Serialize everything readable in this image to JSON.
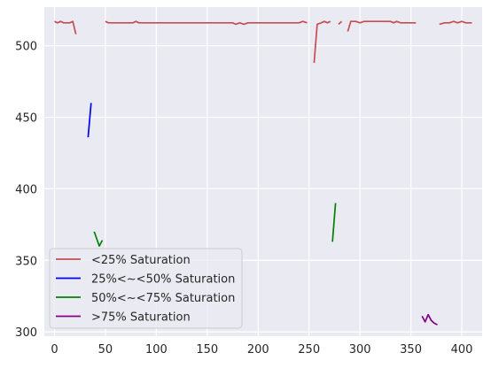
{
  "chart_data": {
    "type": "line",
    "xlim": [
      -10,
      420
    ],
    "ylim": [
      297,
      527
    ],
    "xticks": [
      0,
      50,
      100,
      150,
      200,
      250,
      300,
      350,
      400
    ],
    "yticks": [
      300,
      350,
      400,
      450,
      500
    ],
    "xtick_labels": [
      "0",
      "50",
      "100",
      "150",
      "200",
      "250",
      "300",
      "350",
      "400"
    ],
    "ytick_labels": [
      "300",
      "350",
      "400",
      "450",
      "500"
    ],
    "grid": true,
    "legend_position": "lower-left",
    "series": [
      {
        "name": "<25% Saturation",
        "color": "#c44e52",
        "segments": [
          [
            [
              0,
              517
            ],
            [
              3,
              516
            ],
            [
              6,
              517
            ],
            [
              9,
              516
            ],
            [
              12,
              516
            ],
            [
              15,
              516
            ],
            [
              18,
              517
            ],
            [
              21,
              508
            ]
          ],
          [
            [
              50,
              517
            ],
            [
              53,
              516
            ],
            [
              60,
              516
            ],
            [
              70,
              516
            ],
            [
              77,
              516
            ],
            [
              80,
              517
            ],
            [
              83,
              516
            ],
            [
              100,
              516
            ],
            [
              130,
              516
            ],
            [
              160,
              516
            ],
            [
              175,
              516
            ],
            [
              178,
              515
            ],
            [
              182,
              516
            ],
            [
              186,
              515
            ],
            [
              190,
              516
            ],
            [
              220,
              516
            ],
            [
              240,
              516
            ],
            [
              244,
              517
            ],
            [
              248,
              516
            ]
          ],
          [
            [
              255,
              488
            ],
            [
              258,
              515
            ],
            [
              262,
              516
            ],
            [
              265,
              517
            ],
            [
              268,
              516
            ],
            [
              271,
              517
            ]
          ],
          [
            [
              279,
              515
            ],
            [
              282,
              517
            ]
          ],
          [
            [
              288,
              510
            ],
            [
              291,
              517
            ],
            [
              296,
              517
            ],
            [
              300,
              516
            ],
            [
              304,
              517
            ],
            [
              310,
              517
            ],
            [
              320,
              517
            ],
            [
              330,
              517
            ],
            [
              333,
              516
            ],
            [
              336,
              517
            ],
            [
              340,
              516
            ],
            [
              350,
              516
            ],
            [
              355,
              516
            ]
          ],
          [
            [
              378,
              515
            ],
            [
              383,
              516
            ],
            [
              388,
              516
            ],
            [
              392,
              517
            ],
            [
              396,
              516
            ],
            [
              400,
              517
            ],
            [
              404,
              516
            ],
            [
              410,
              516
            ]
          ]
        ]
      },
      {
        "name": "25%<~<50% Saturation",
        "color": "#0000ff",
        "segments": [
          [
            [
              33,
              436
            ],
            [
              36,
              460
            ]
          ]
        ]
      },
      {
        "name": "50%<~<75% Saturation",
        "color": "#008000",
        "segments": [
          [
            [
              39,
              370
            ],
            [
              44,
              360
            ],
            [
              47,
              364
            ]
          ],
          [
            [
              273,
              363
            ],
            [
              276,
              390
            ]
          ]
        ]
      },
      {
        "name": ">75% Saturation",
        "color": "#800080",
        "segments": [
          [
            [
              361,
              311
            ],
            [
              364,
              307
            ],
            [
              367,
              312
            ],
            [
              370,
              308
            ],
            [
              373,
              306
            ],
            [
              376,
              305
            ]
          ]
        ]
      }
    ]
  }
}
